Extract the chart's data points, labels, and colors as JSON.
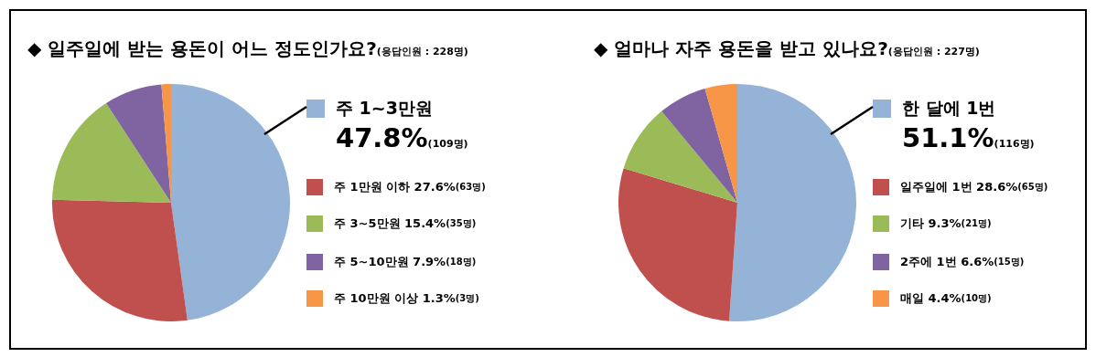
{
  "chart_data": [
    {
      "type": "pie",
      "title": "◆ 일주일에 받는 용돈이 어느 정도인가요?",
      "subtitle": "(응답인원 : 228명)",
      "categories": [
        "주 1~3만원",
        "주 1만원 이하",
        "주 3~5만원",
        "주 5~10만원",
        "주 10만원 이상"
      ],
      "values": [
        47.8,
        27.6,
        15.4,
        7.9,
        1.3
      ],
      "colors": [
        "#95b3d7",
        "#c0504d",
        "#9bbb59",
        "#8064a2",
        "#f79646"
      ],
      "value_labels": [
        "47.8%(109명)",
        "27.6%(63명)",
        "15.4%(35명)",
        "7.9%(18명)",
        "1.3%(3명)"
      ],
      "legend": "right"
    },
    {
      "type": "pie",
      "title": "◆ 얼마나 자주 용돈을 받고 있나요?",
      "subtitle": "(응답인원 : 227명)",
      "categories": [
        "한 달에 1번",
        "일주일에 1번",
        "기타",
        "2주에 1번",
        "매일"
      ],
      "values": [
        51.1,
        28.6,
        9.3,
        6.6,
        4.4
      ],
      "colors": [
        "#95b3d7",
        "#c0504d",
        "#9bbb59",
        "#8064a2",
        "#f79646"
      ],
      "value_labels": [
        "51.1%(116명)",
        "28.6%(65명)",
        "9.3%(21명)",
        "6.6%(15명)",
        "4.4%(10명)"
      ],
      "legend": "right"
    }
  ]
}
